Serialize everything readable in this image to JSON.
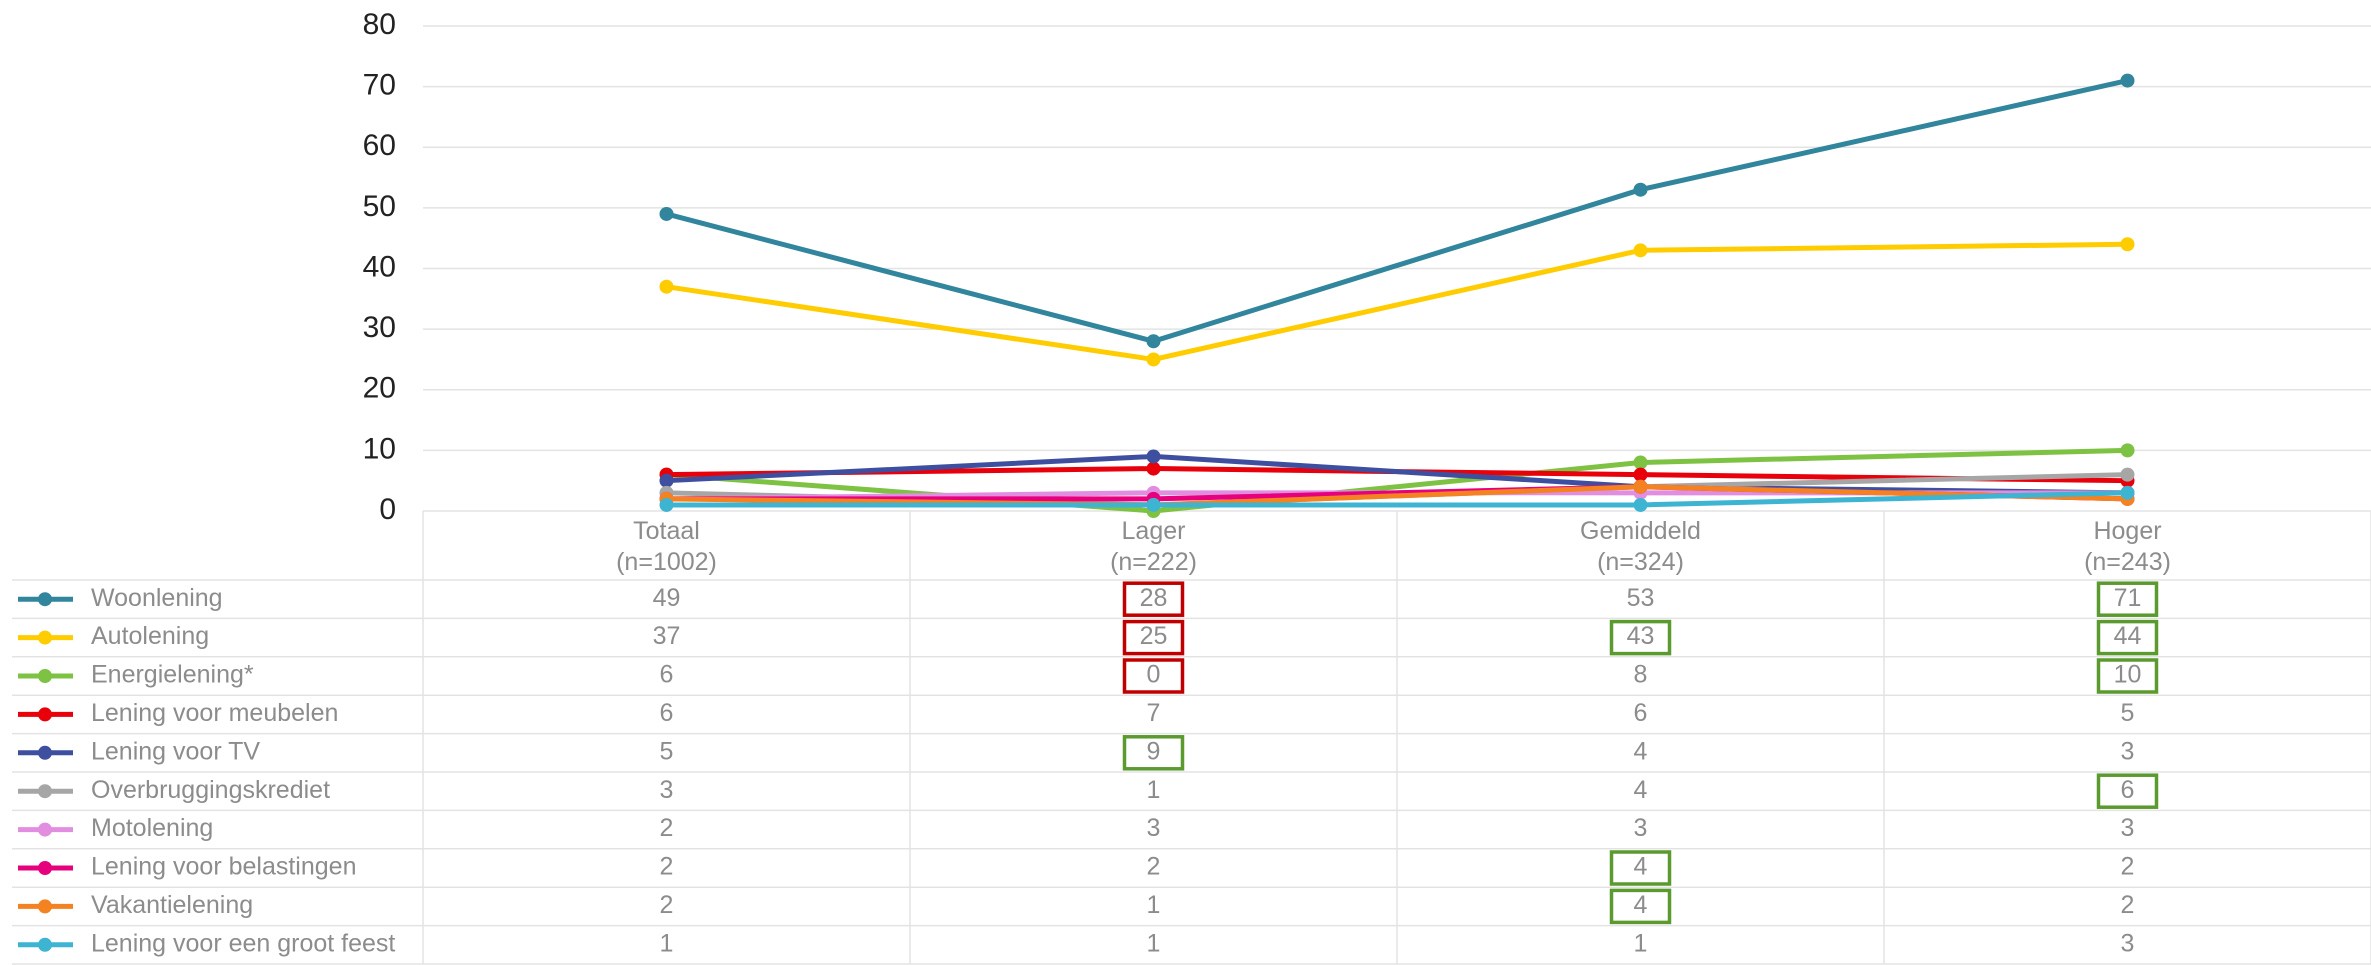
{
  "chart_data": {
    "type": "line",
    "categories": [
      "Totaal\n(n=1002)",
      "Lager\n(n=222)",
      "Gemiddeld\n(n=324)",
      "Hoger\n(n=243)"
    ],
    "ylim": [
      0,
      80
    ],
    "yticks": [
      0,
      10,
      20,
      30,
      40,
      50,
      60,
      70,
      80
    ],
    "grid": true,
    "series": [
      {
        "name": "Woonlening",
        "color": "#31859c",
        "values": [
          49,
          28,
          53,
          71
        ],
        "boxes": [
          null,
          "#c00000",
          null,
          "#5b9a2e"
        ]
      },
      {
        "name": "Autolening",
        "color": "#ffcc00",
        "values": [
          37,
          25,
          43,
          44
        ],
        "boxes": [
          null,
          "#c00000",
          "#5b9a2e",
          "#5b9a2e"
        ]
      },
      {
        "name": "Energielening*",
        "color": "#7dc243",
        "values": [
          6,
          0,
          8,
          10
        ],
        "boxes": [
          null,
          "#c00000",
          null,
          "#5b9a2e"
        ]
      },
      {
        "name": "Lening voor meubelen",
        "color": "#e8000b",
        "values": [
          6,
          7,
          6,
          5
        ],
        "boxes": [
          null,
          null,
          null,
          null
        ]
      },
      {
        "name": "Lening voor TV",
        "color": "#3f4fa0",
        "values": [
          5,
          9,
          4,
          3
        ],
        "boxes": [
          null,
          "#5b9a2e",
          null,
          null
        ]
      },
      {
        "name": "Overbruggingskrediet",
        "color": "#a6a6a6",
        "values": [
          3,
          1,
          4,
          6
        ],
        "boxes": [
          null,
          null,
          null,
          "#5b9a2e"
        ]
      },
      {
        "name": "Motolening",
        "color": "#e28ee0",
        "values": [
          2,
          3,
          3,
          3
        ],
        "boxes": [
          null,
          null,
          null,
          null
        ]
      },
      {
        "name": "Lening voor belastingen",
        "color": "#e6007e",
        "values": [
          2,
          2,
          4,
          2
        ],
        "boxes": [
          null,
          null,
          "#5b9a2e",
          null
        ]
      },
      {
        "name": "Vakantielening",
        "color": "#f58220",
        "values": [
          2,
          1,
          4,
          2
        ],
        "boxes": [
          null,
          null,
          "#5b9a2e",
          null
        ]
      },
      {
        "name": "Lening voor een groot feest",
        "color": "#3cb4d2",
        "values": [
          1,
          1,
          1,
          3
        ],
        "boxes": [
          null,
          null,
          null,
          null
        ]
      }
    ]
  }
}
